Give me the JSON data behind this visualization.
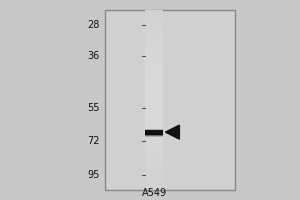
{
  "background_color": "#c8c8c8",
  "outer_bg": "#c0c0c0",
  "panel_bg": "#d2d2d2",
  "fig_width": 3.0,
  "fig_height": 2.0,
  "lane_label": "A549",
  "mw_markers": [
    95,
    72,
    55,
    36,
    28
  ],
  "band_mw": 67,
  "arrow_color": "#111111",
  "band_color": "#1a1a1a",
  "text_color": "#111111",
  "label_fontsize": 7,
  "marker_fontsize": 7,
  "lane_gray": "#c0c0c0",
  "lane_gray_light": "#cccccc",
  "outer_rect_color": "#888888"
}
